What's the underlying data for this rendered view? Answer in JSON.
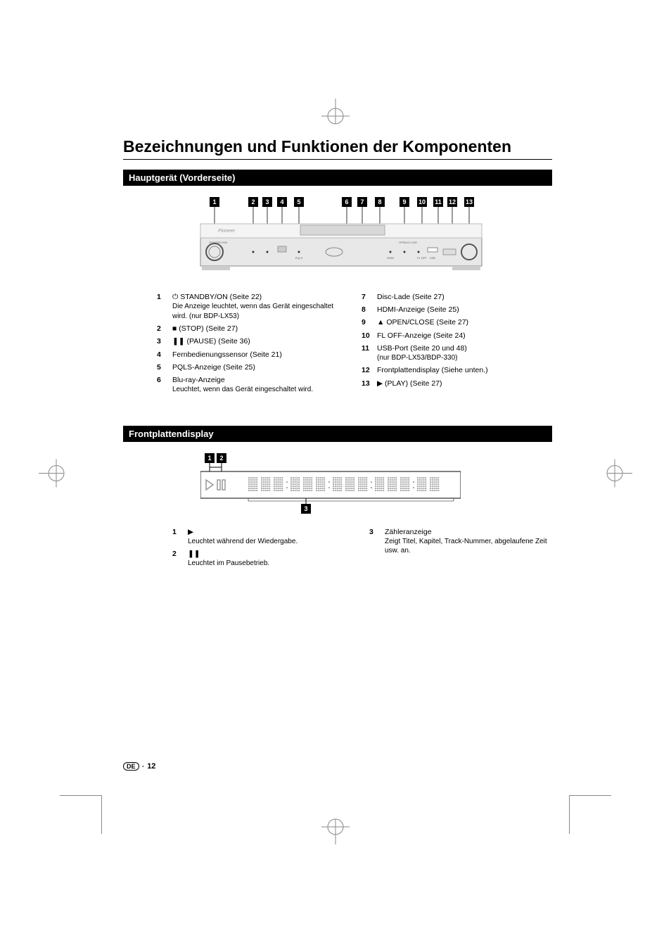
{
  "page": {
    "title": "Bezeichnungen und Funktionen der Komponenten",
    "footer_region": "DE",
    "footer_sep": "-",
    "footer_page": "12"
  },
  "section1": {
    "header": "Hauptgerät (Vorderseite)",
    "callouts": [
      "1",
      "2",
      "3",
      "4",
      "5",
      "6",
      "7",
      "8",
      "9",
      "10",
      "11",
      "12",
      "13"
    ],
    "device_labels": {
      "brand": "Pioneer",
      "standby": "STANDBY/ON",
      "pqls": "PQLS",
      "hdmi": "HDMI",
      "openclose": "OPEN/CLOSE",
      "floff": "FL OFF",
      "usb": "USB"
    },
    "legend_left": [
      {
        "num": "1",
        "sym": "⏻",
        "text": "STANDBY/ON (Seite 22)",
        "sub": "Die Anzeige leuchtet, wenn das Gerät eingeschaltet wird. (nur BDP-LX53)"
      },
      {
        "num": "2",
        "sym": "■",
        "text": "(STOP) (Seite 27)"
      },
      {
        "num": "3",
        "sym": "❚❚",
        "text": "(PAUSE) (Seite 36)"
      },
      {
        "num": "4",
        "text": "Fernbedienungssensor (Seite 21)"
      },
      {
        "num": "5",
        "text": "PQLS-Anzeige (Seite 25)"
      },
      {
        "num": "6",
        "text": "Blu-ray-Anzeige",
        "sub": "Leuchtet, wenn das Gerät eingeschaltet wird."
      }
    ],
    "legend_right": [
      {
        "num": "7",
        "text": "Disc-Lade (Seite 27)"
      },
      {
        "num": "8",
        "text": "HDMI-Anzeige (Seite 25)"
      },
      {
        "num": "9",
        "sym": "▲",
        "text": "OPEN/CLOSE (Seite 27)"
      },
      {
        "num": "10",
        "text": "FL OFF-Anzeige (Seite 24)"
      },
      {
        "num": "11",
        "text": "USB-Port (Seite 20 und 48)",
        "sub": "(nur BDP-LX53/BDP-330)"
      },
      {
        "num": "12",
        "text": "Frontplattendisplay (Siehe unten.)"
      },
      {
        "num": "13",
        "sym": "▶",
        "text": "(PLAY) (Seite 27)"
      }
    ]
  },
  "section2": {
    "header": "Frontplattendisplay",
    "callouts_top": [
      "1",
      "2"
    ],
    "callouts_bottom": [
      "3"
    ],
    "legend_left": [
      {
        "num": "1",
        "sym": "▶",
        "sub": "Leuchtet während der Wiedergabe."
      },
      {
        "num": "2",
        "sym": "❚❚",
        "sub": "Leuchtet im Pausebetrieb."
      }
    ],
    "legend_right": [
      {
        "num": "3",
        "text": "Zähleranzeige",
        "sub": "Zeigt Titel, Kapitel, Track-Nummer, abgelaufene Zeit usw. an."
      }
    ]
  },
  "colors": {
    "black": "#000000",
    "grey_line": "#888888",
    "light_grey": "#cccccc",
    "device_grey": "#bbbbbb"
  }
}
